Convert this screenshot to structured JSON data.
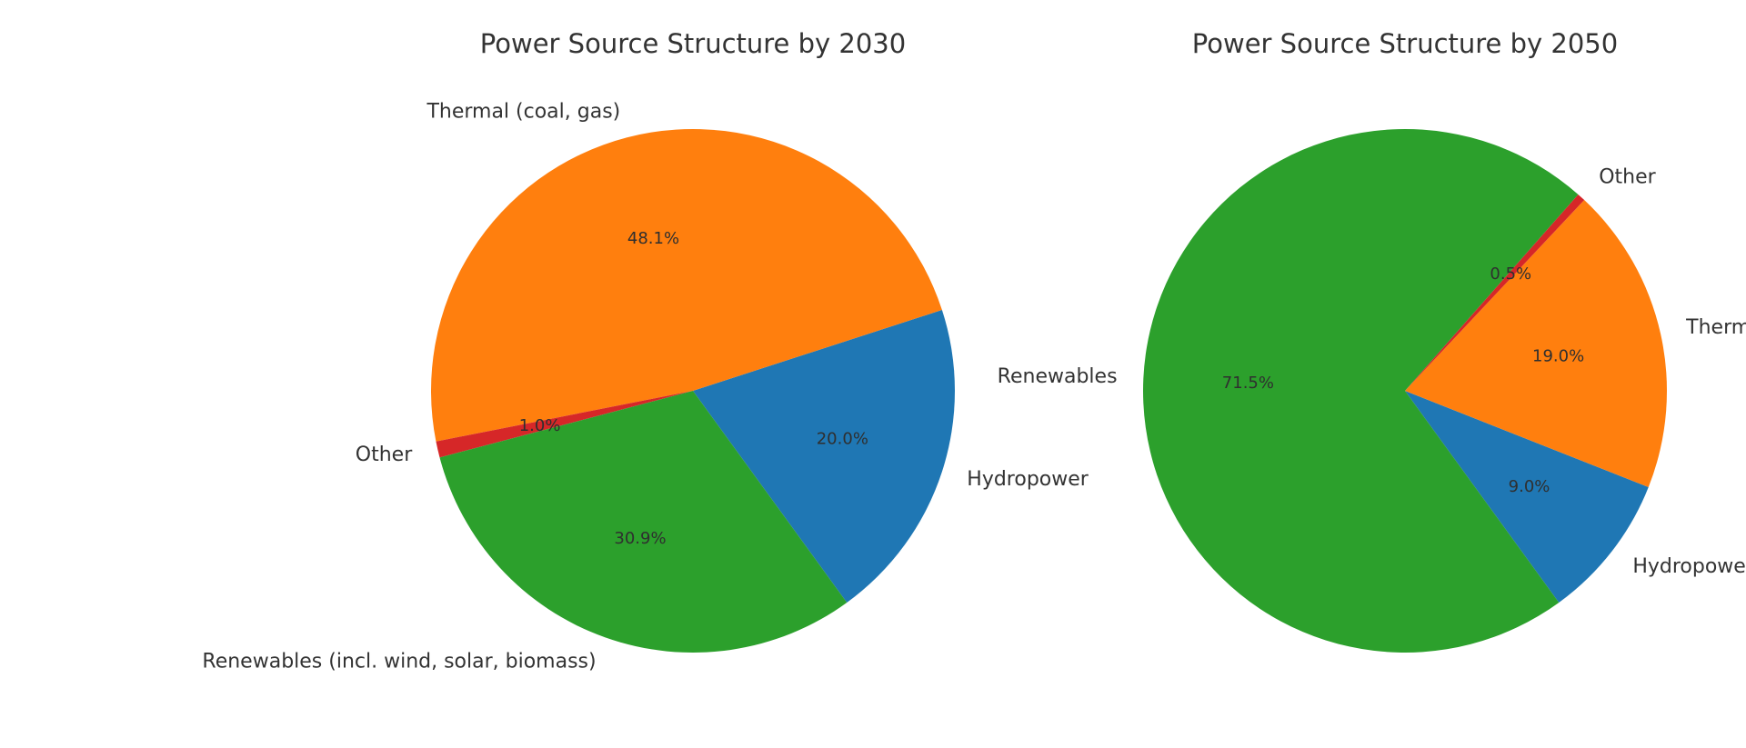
{
  "chart_data": [
    {
      "type": "pie",
      "title": "Power Source Structure by 2030",
      "slices": [
        {
          "label": "Hydropower",
          "value": 20.0,
          "pct_text": "20.0%",
          "color": "#1f77b4"
        },
        {
          "label": "Thermal (coal, gas)",
          "value": 48.1,
          "pct_text": "48.1%",
          "color": "#ff7f0e"
        },
        {
          "label": "Other",
          "value": 1.0,
          "pct_text": "1.0%",
          "color": "#d62728"
        },
        {
          "label": "Renewables (incl. wind, solar, biomass)",
          "value": 30.9,
          "pct_text": "30.9%",
          "color": "#2ca02c"
        }
      ]
    },
    {
      "type": "pie",
      "title": "Power Source Structure by 2050",
      "slices": [
        {
          "label": "Hydropower",
          "value": 9.0,
          "pct_text": "9.0%",
          "color": "#1f77b4"
        },
        {
          "label": "Thermal (coal, gas)",
          "value": 19.0,
          "pct_text": "19.0%",
          "color": "#ff7f0e"
        },
        {
          "label": "Other",
          "value": 0.5,
          "pct_text": "0.5%",
          "color": "#d62728"
        },
        {
          "label": "Renewables",
          "value": 71.5,
          "pct_text": "71.5%",
          "color": "#2ca02c"
        }
      ]
    }
  ]
}
